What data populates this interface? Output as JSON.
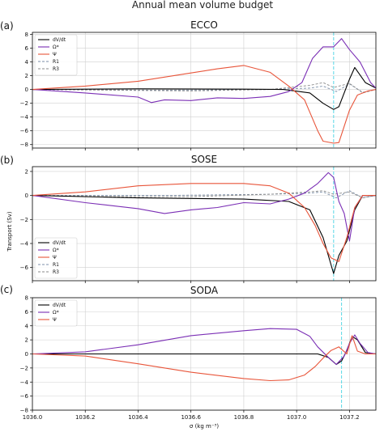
{
  "figure": {
    "title": "Annual mean volume budget",
    "xlabel": "σ (kg m⁻³)",
    "ylabel": "Transport (Sv)"
  },
  "colors": {
    "dVdt": "#000000",
    "omega": "#7b2fb5",
    "psi": "#e8553a",
    "r1": "#7c8fa8",
    "r3": "#8a8a8a",
    "vline": "#5ad8e6",
    "grid": "#d0d0d0"
  },
  "chart_data": [
    {
      "type": "line",
      "title": "ECCO",
      "panel_label": "(a)",
      "xlim": [
        1036.0,
        1037.3
      ],
      "ylim": [
        -8.5,
        8.3
      ],
      "x_ticks": [
        1036.0,
        1036.2,
        1036.4,
        1036.6,
        1036.8,
        1037.0,
        1037.2
      ],
      "x_tick_labels": [
        "",
        "",
        "",
        "",
        "",
        "",
        ""
      ],
      "y_ticks": [
        -8,
        -6,
        -4,
        -2,
        0,
        2,
        4,
        6,
        8
      ],
      "y_tick_labels": [
        "−8",
        "−6",
        "−4",
        "−2",
        "0",
        "2",
        "4",
        "6",
        "8"
      ],
      "grid": true,
      "legend": "upper left",
      "vline": 1037.14,
      "series": [
        {
          "name": "dV/dt",
          "key": "dVdt",
          "style": "solid",
          "x": [
            1036.0,
            1036.4,
            1036.8,
            1036.95,
            1037.05,
            1037.1,
            1037.14,
            1037.16,
            1037.2,
            1037.22,
            1037.26,
            1037.3
          ],
          "y": [
            0,
            0.1,
            0.05,
            0.0,
            -0.5,
            -2.0,
            -2.9,
            -2.5,
            1.5,
            3.2,
            1.0,
            0.2
          ]
        },
        {
          "name": "Ω*",
          "key": "omega",
          "style": "solid",
          "x": [
            1036.0,
            1036.2,
            1036.4,
            1036.45,
            1036.5,
            1036.6,
            1036.7,
            1036.8,
            1036.9,
            1036.97,
            1037.02,
            1037.06,
            1037.1,
            1037.14,
            1037.17,
            1037.2,
            1037.24,
            1037.28,
            1037.3
          ],
          "y": [
            0,
            -0.5,
            -1.1,
            -1.9,
            -1.5,
            -1.6,
            -1.2,
            -1.3,
            -1.0,
            -0.3,
            1.0,
            4.5,
            6.2,
            6.2,
            7.4,
            5.8,
            4.0,
            1.0,
            0.2
          ]
        },
        {
          "name": "Ψ",
          "key": "psi",
          "style": "solid",
          "x": [
            1036.0,
            1036.2,
            1036.4,
            1036.6,
            1036.7,
            1036.8,
            1036.9,
            1036.97,
            1037.03,
            1037.08,
            1037.1,
            1037.14,
            1037.16,
            1037.2,
            1037.23,
            1037.27,
            1037.3
          ],
          "y": [
            0,
            0.5,
            1.2,
            2.4,
            3.0,
            3.5,
            2.5,
            0.5,
            -1.5,
            -6.0,
            -7.5,
            -7.8,
            -7.7,
            -3.0,
            -0.8,
            -0.2,
            0
          ]
        },
        {
          "name": "R1",
          "key": "r1",
          "style": "dashed",
          "x": [
            1036.0,
            1036.5,
            1036.9,
            1037.05,
            1037.1,
            1037.15,
            1037.2,
            1037.25,
            1037.3
          ],
          "y": [
            0,
            -0.1,
            0,
            0.2,
            0.5,
            -0.3,
            0.8,
            -0.4,
            0
          ]
        },
        {
          "name": "R3",
          "key": "r3",
          "style": "dashed",
          "x": [
            1036.0,
            1036.3,
            1036.6,
            1036.9,
            1037.05,
            1037.1,
            1037.14,
            1037.2,
            1037.25,
            1037.3
          ],
          "y": [
            0,
            -0.1,
            -0.2,
            0,
            0.6,
            1.0,
            0.3,
            0.9,
            -0.5,
            0
          ]
        }
      ]
    },
    {
      "type": "line",
      "title": "SOSE",
      "panel_label": "(b)",
      "ylabel": "Transport (Sv)",
      "xlim": [
        1036.0,
        1037.3
      ],
      "ylim": [
        -7.1,
        2.4
      ],
      "x_ticks": [
        1036.0,
        1036.2,
        1036.4,
        1036.6,
        1036.8,
        1037.0,
        1037.2
      ],
      "x_tick_labels": [
        "",
        "",
        "",
        "",
        "",
        "",
        ""
      ],
      "y_ticks": [
        -6,
        -4,
        -2,
        0,
        2
      ],
      "y_tick_labels": [
        "−6",
        "−4",
        "−2",
        "0",
        "2"
      ],
      "grid": true,
      "legend": "lower left",
      "vline": 1037.14,
      "series": [
        {
          "name": "dV/dt",
          "key": "dVdt",
          "style": "solid",
          "x": [
            1036.0,
            1036.4,
            1036.8,
            1036.97,
            1037.05,
            1037.1,
            1037.14,
            1037.16,
            1037.19,
            1037.22,
            1037.25,
            1037.3
          ],
          "y": [
            0,
            -0.2,
            -0.3,
            -0.5,
            -1.2,
            -3.5,
            -6.5,
            -5.0,
            -3.8,
            -1.2,
            0,
            0
          ]
        },
        {
          "name": "Ω*",
          "key": "omega",
          "style": "solid",
          "x": [
            1036.0,
            1036.2,
            1036.4,
            1036.5,
            1036.6,
            1036.7,
            1036.8,
            1036.9,
            1036.97,
            1037.03,
            1037.08,
            1037.12,
            1037.14,
            1037.16,
            1037.18,
            1037.2,
            1037.22,
            1037.25,
            1037.3
          ],
          "y": [
            0,
            -0.6,
            -1.1,
            -1.5,
            -1.2,
            -1.0,
            -0.6,
            -0.7,
            -0.3,
            0.2,
            1.0,
            1.9,
            1.5,
            -0.5,
            -1.5,
            -3.8,
            -1.0,
            0,
            0
          ]
        },
        {
          "name": "Ψ",
          "key": "psi",
          "style": "solid",
          "x": [
            1036.0,
            1036.2,
            1036.4,
            1036.6,
            1036.7,
            1036.8,
            1036.9,
            1036.97,
            1037.03,
            1037.07,
            1037.1,
            1037.13,
            1037.16,
            1037.19,
            1037.22,
            1037.25,
            1037.3
          ],
          "y": [
            0,
            0.3,
            0.8,
            1.0,
            1.0,
            1.0,
            0.8,
            0.2,
            -1.0,
            -2.5,
            -4.0,
            -5.2,
            -5.5,
            -3.5,
            -1.0,
            0,
            0
          ]
        },
        {
          "name": "R1",
          "key": "r1",
          "style": "dashed",
          "x": [
            1036.0,
            1036.5,
            1036.9,
            1037.05,
            1037.1,
            1037.15,
            1037.2,
            1037.25,
            1037.3
          ],
          "y": [
            0,
            0,
            0.1,
            0.2,
            0.3,
            -0.2,
            0.4,
            -0.2,
            0
          ]
        },
        {
          "name": "R3",
          "key": "r3",
          "style": "dashed",
          "x": [
            1036.0,
            1036.3,
            1036.6,
            1036.9,
            1037.05,
            1037.1,
            1037.14,
            1037.2,
            1037.25,
            1037.3
          ],
          "y": [
            0,
            -0.1,
            -0.1,
            0.1,
            0.3,
            0.4,
            0.1,
            0.3,
            -0.2,
            0
          ]
        }
      ]
    },
    {
      "type": "line",
      "title": "SODA",
      "panel_label": "(c)",
      "xlabel": "σ (kg m⁻³)",
      "xlim": [
        1036.0,
        1037.3
      ],
      "ylim": [
        -8.0,
        8.0
      ],
      "x_ticks": [
        1036.0,
        1036.2,
        1036.4,
        1036.6,
        1036.8,
        1037.0,
        1037.2
      ],
      "x_tick_labels": [
        "1036.0",
        "1036.2",
        "1036.4",
        "1036.6",
        "1036.8",
        "1037.0",
        "1037.2"
      ],
      "y_ticks": [
        -8,
        -6,
        -4,
        -2,
        0,
        2,
        4,
        6,
        8
      ],
      "y_tick_labels": [
        "−8",
        "−6",
        "−4",
        "−2",
        "0",
        "2",
        "4",
        "6",
        "8"
      ],
      "grid": true,
      "legend": "upper left",
      "vline": 1037.17,
      "series": [
        {
          "name": "dV/dt",
          "key": "dVdt",
          "style": "solid",
          "x": [
            1036.0,
            1036.5,
            1037.0,
            1037.08,
            1037.12,
            1037.15,
            1037.17,
            1037.19,
            1037.21,
            1037.23,
            1037.26,
            1037.3
          ],
          "y": [
            0,
            0,
            0,
            0,
            -0.5,
            -1.5,
            -1.0,
            0.5,
            2.5,
            2.0,
            0.2,
            0
          ]
        },
        {
          "name": "Ω*",
          "key": "omega",
          "style": "solid",
          "x": [
            1036.0,
            1036.2,
            1036.4,
            1036.6,
            1036.8,
            1036.9,
            1037.0,
            1037.05,
            1037.08,
            1037.12,
            1037.15,
            1037.18,
            1037.2,
            1037.22,
            1037.24,
            1037.27,
            1037.3
          ],
          "y": [
            0,
            0.3,
            1.3,
            2.6,
            3.3,
            3.6,
            3.5,
            2.5,
            1.0,
            -0.5,
            -1.5,
            -0.3,
            1.5,
            2.7,
            1.5,
            0.2,
            0
          ]
        },
        {
          "name": "Ψ",
          "key": "psi",
          "style": "solid",
          "x": [
            1036.0,
            1036.2,
            1036.4,
            1036.6,
            1036.8,
            1036.9,
            1036.97,
            1037.03,
            1037.07,
            1037.1,
            1037.13,
            1037.16,
            1037.19,
            1037.21,
            1037.23,
            1037.26,
            1037.3
          ],
          "y": [
            0,
            -0.3,
            -1.4,
            -2.6,
            -3.5,
            -3.8,
            -3.7,
            -3.0,
            -1.8,
            -0.6,
            0.5,
            1.0,
            0.0,
            2.6,
            0.4,
            0,
            0
          ]
        }
      ]
    }
  ]
}
